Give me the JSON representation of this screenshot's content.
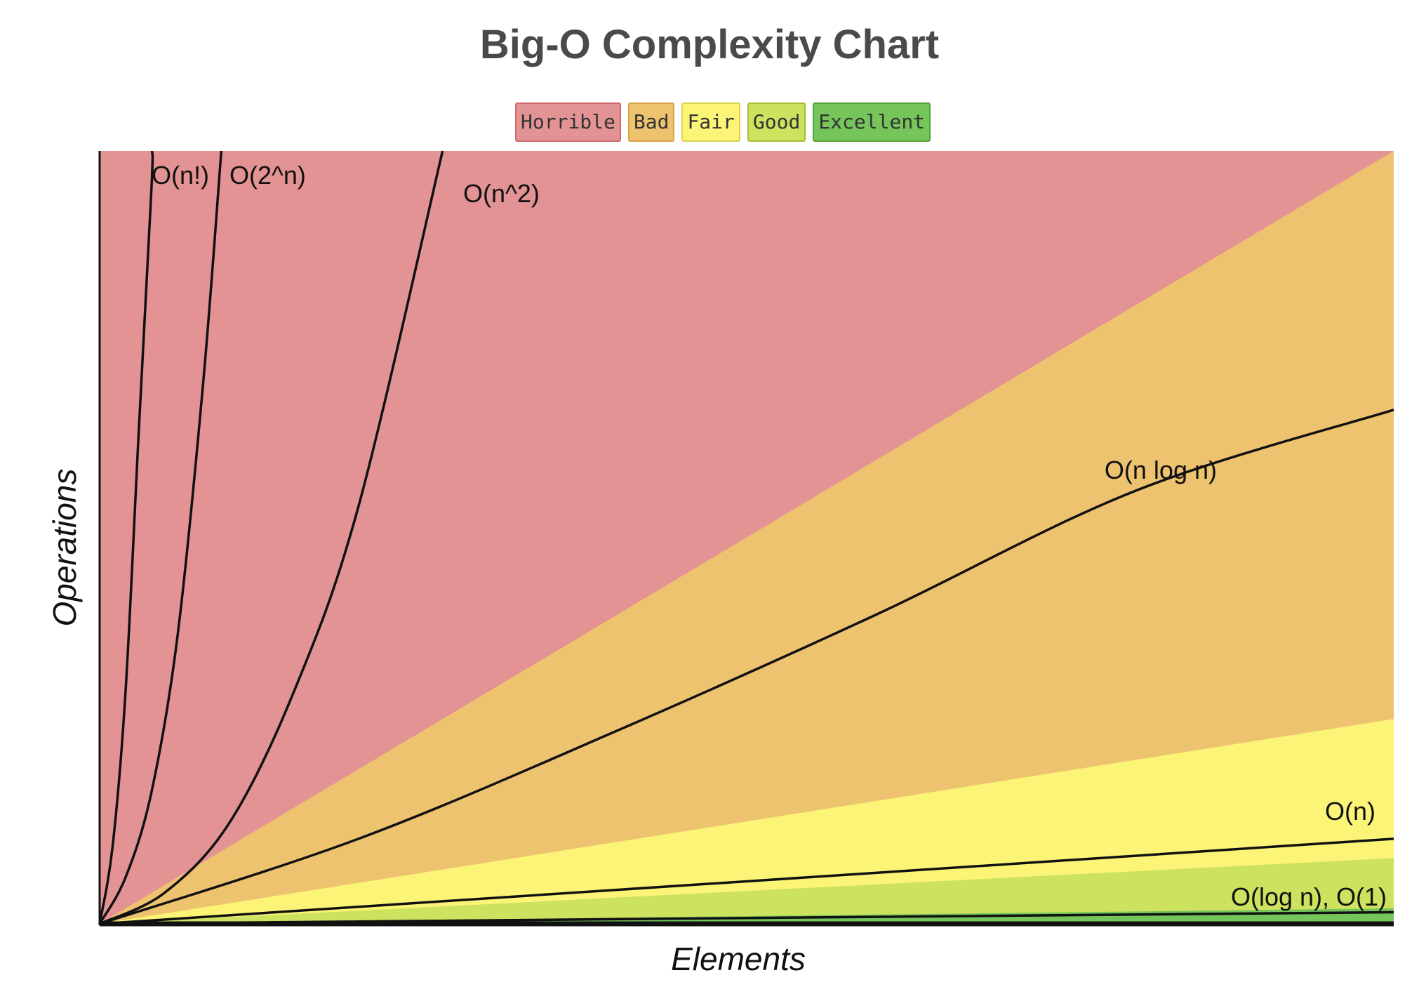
{
  "chart_data": {
    "type": "area",
    "title": "Big-O Complexity Chart",
    "xlabel": "Elements",
    "ylabel": "Operations",
    "legend": [
      {
        "label": "Horrible",
        "color": "#e39393",
        "border": "#d16a6a"
      },
      {
        "label": "Bad",
        "color": "#eec36f",
        "border": "#d9a447"
      },
      {
        "label": "Fair",
        "color": "#fbf476",
        "border": "#dcd44c"
      },
      {
        "label": "Good",
        "color": "#cde25e",
        "border": "#a8be3a"
      },
      {
        "label": "Excellent",
        "color": "#76c55a",
        "border": "#52a43a"
      }
    ],
    "regions": [
      {
        "name": "Horrible",
        "color": "#e39393",
        "upper_y_at_end": 100
      },
      {
        "name": "Bad",
        "color": "#eec36f",
        "upper_y_at_end": 100
      },
      {
        "name": "Fair",
        "color": "#fbf476",
        "upper_y_at_end": 26.5
      },
      {
        "name": "Good",
        "color": "#cde25e",
        "upper_y_at_end": 8.5
      },
      {
        "name": "Excellent",
        "color": "#76c55a",
        "upper_y_at_end": 2
      }
    ],
    "curves": [
      {
        "label": "O(n!)",
        "x": [
          0,
          1,
          2,
          3,
          4,
          4.05
        ],
        "y": [
          0,
          10,
          30,
          63,
          95,
          100
        ]
      },
      {
        "label": "O(2^n)",
        "x": [
          0,
          2,
          4,
          6,
          8,
          9.4
        ],
        "y": [
          0,
          6,
          17,
          37,
          70,
          100
        ]
      },
      {
        "label": "O(n^2)",
        "x": [
          0,
          5,
          10,
          15,
          20,
          26.5
        ],
        "y": [
          0,
          4,
          13,
          30,
          54,
          100
        ]
      },
      {
        "label": "O(n log n)",
        "x": [
          0,
          20,
          40,
          60,
          80,
          100
        ],
        "y": [
          0,
          11,
          25,
          40,
          56,
          66.5
        ]
      },
      {
        "label": "O(n)",
        "x": [
          0,
          100
        ],
        "y": [
          0,
          11
        ]
      },
      {
        "label": "O(log n), O(1)",
        "x": [
          0,
          100
        ],
        "y": [
          0,
          1.5
        ]
      }
    ]
  }
}
